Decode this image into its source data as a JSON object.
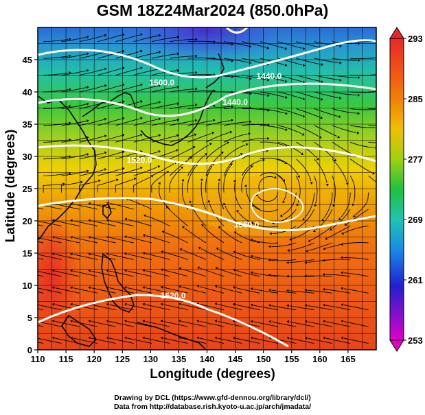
{
  "title": "GSM 18Z24Mar2024 (850.0hPa)",
  "x_axis": {
    "label": "Longitude (degrees)",
    "ticks": [
      "110",
      "115",
      "120",
      "125",
      "130",
      "135",
      "140",
      "145",
      "150",
      "155",
      "160",
      "165"
    ],
    "range": [
      110,
      170
    ]
  },
  "y_axis": {
    "label": "Latitude  (degrees)",
    "ticks": [
      "0",
      "5",
      "10",
      "15",
      "20",
      "25",
      "30",
      "35",
      "40",
      "45"
    ],
    "range": [
      0,
      50
    ]
  },
  "colorbar": {
    "ticks": [
      "253",
      "261",
      "269",
      "277",
      "285",
      "293"
    ],
    "range": [
      253,
      293
    ],
    "colors": [
      "#e000c8",
      "#2020d0",
      "#1a8ae8",
      "#22c4b8",
      "#20c050",
      "#80d020",
      "#e0e000",
      "#f0a000",
      "#f06010",
      "#e82828"
    ]
  },
  "contour_labels": [
    {
      "text": "1440.0",
      "lon": 151,
      "lat": 42
    },
    {
      "text": "1440.0",
      "lon": 145,
      "lat": 38
    },
    {
      "text": "1500.0",
      "lon": 132,
      "lat": 41
    },
    {
      "text": "1520.0",
      "lon": 128,
      "lat": 29
    },
    {
      "text": "1560.0",
      "lon": 147,
      "lat": 19
    },
    {
      "text": "1520.0",
      "lon": 134,
      "lat": 8
    }
  ],
  "credits": {
    "line1": "Drawing by DCL (https://www.gfd-dennou.org/library/dcl/)",
    "line2": "Data from http://database.rish.kyoto-u.ac.jp/arch/jmadata/"
  }
}
